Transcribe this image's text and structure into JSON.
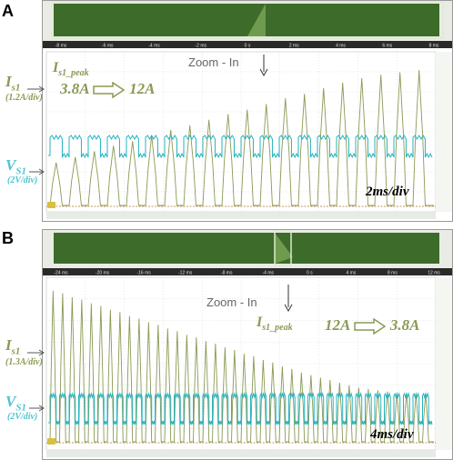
{
  "panels": [
    {
      "letter": "A",
      "current_name": "I",
      "current_sub": "s1",
      "current_scale": "(1.2A/div)",
      "voltage_name": "V",
      "voltage_sub": "S1",
      "voltage_scale": "(2V/div)",
      "peak_name": "I",
      "peak_sub": "s1_peak",
      "from": "3.8A",
      "to": "12A",
      "zoom_label": "Zoom - In",
      "time_div": "2ms/div"
    },
    {
      "letter": "B",
      "current_name": "I",
      "current_sub": "s1",
      "current_scale": "(1.3A/div)",
      "voltage_name": "V",
      "voltage_sub": "S1",
      "voltage_scale": "(2V/div)",
      "peak_name": "I",
      "peak_sub": "s1_peak",
      "from": "12A",
      "to": "3.8A",
      "zoom_label": "Zoom - In",
      "time_div": "4ms/div"
    }
  ],
  "colors": {
    "current": "#8a9a55",
    "voltage": "#26b3bf",
    "overview_bg": "#3d6b2a",
    "grid": "#cfd8cf"
  },
  "chart_data": [
    {
      "type": "line",
      "title": "",
      "series": [
        {
          "name": "Is1",
          "pulse_count": 20,
          "peaks": [
            3.8,
            4.3,
            4.8,
            5.3,
            5.7,
            6.2,
            6.7,
            7.1,
            7.6,
            8.1,
            8.5,
            9.0,
            9.5,
            9.9,
            10.4,
            10.9,
            11.3,
            11.6,
            11.8,
            12.0
          ]
        },
        {
          "name": "VS1",
          "pulse_count": 20
        }
      ],
      "current_range_A": [
        3.8,
        12
      ],
      "time_per_div_ms": 2,
      "overview_ticks": [
        "-8 ms",
        "-6 ms",
        "-4 ms",
        "-2 ms",
        "0 s",
        "2 ms",
        "4 ms",
        "6 ms",
        "8 ms"
      ]
    },
    {
      "type": "line",
      "title": "",
      "series": [
        {
          "name": "Is1",
          "pulse_count": 40,
          "peaks": [
            12.0,
            11.8,
            11.5,
            11.3,
            11.0,
            10.8,
            10.5,
            10.3,
            10.0,
            9.8,
            9.5,
            9.3,
            9.0,
            8.8,
            8.5,
            8.3,
            8.0,
            7.8,
            7.5,
            7.3,
            7.0,
            6.8,
            6.5,
            6.3,
            6.0,
            5.8,
            5.5,
            5.3,
            5.1,
            4.9,
            4.7,
            4.5,
            4.3,
            4.2,
            4.1,
            4.0,
            3.9,
            3.9,
            3.8,
            3.8
          ]
        },
        {
          "name": "VS1",
          "pulse_count": 40
        }
      ],
      "current_range_A": [
        12,
        3.8
      ],
      "time_per_div_ms": 4,
      "overview_ticks": [
        "-24 ms",
        "-20 ms",
        "-16 ms",
        "-12 ms",
        "-8 ms",
        "-4 ms",
        "0 s",
        "4 ms",
        "8 ms",
        "12 ms"
      ]
    }
  ]
}
